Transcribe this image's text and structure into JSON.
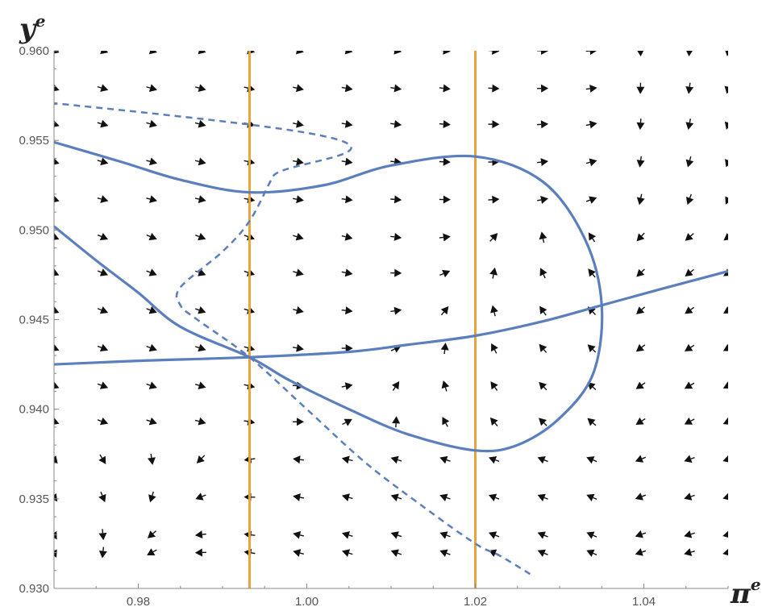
{
  "chart_data": {
    "type": "vector-field",
    "xlabel": "π",
    "xlabel_sup": "e",
    "ylabel": "y",
    "ylabel_sup": "e",
    "xlim": [
      0.97,
      1.05
    ],
    "ylim": [
      0.93,
      0.96
    ],
    "x_ticks": [
      0.98,
      1.0,
      1.02,
      1.04
    ],
    "x_tick_labels": [
      "0.98",
      "1.00",
      "1.02",
      "1.04"
    ],
    "y_ticks": [
      0.93,
      0.935,
      0.94,
      0.945,
      0.95,
      0.955,
      0.96
    ],
    "y_tick_labels": [
      "0.930",
      "0.935",
      "0.940",
      "0.945",
      "0.950",
      "0.955",
      "0.960"
    ],
    "grid": false,
    "colors": {
      "curve": "#5b7fbd",
      "vertical": "#e8a33d",
      "arrow": "#111111",
      "axis": "#888888"
    },
    "vertical_lines_x": [
      0.9932,
      1.02
    ],
    "series": [
      {
        "style": "solid",
        "points": [
          [
            0.97,
            0.9425
          ],
          [
            0.98,
            0.9427
          ],
          [
            0.9932,
            0.9429
          ],
          [
            1.005,
            0.9432
          ],
          [
            1.012,
            0.9436
          ],
          [
            1.02,
            0.9441
          ],
          [
            1.028,
            0.9449
          ],
          [
            1.035,
            0.9458
          ],
          [
            1.042,
            0.9467
          ],
          [
            1.05,
            0.9477
          ]
        ]
      },
      {
        "style": "solid",
        "points": [
          [
            0.97,
            0.9502
          ],
          [
            0.975,
            0.9483
          ],
          [
            0.98,
            0.9465
          ],
          [
            0.985,
            0.9446
          ],
          [
            0.9932,
            0.9429
          ],
          [
            0.998,
            0.9416
          ],
          [
            1.005,
            0.94
          ],
          [
            1.012,
            0.9386
          ],
          [
            1.02,
            0.9377
          ],
          [
            1.025,
            0.938
          ],
          [
            1.03,
            0.9395
          ],
          [
            1.034,
            0.942
          ],
          [
            1.035,
            0.9458
          ],
          [
            1.033,
            0.9495
          ],
          [
            1.028,
            0.9527
          ],
          [
            1.02,
            0.9541
          ],
          [
            1.01,
            0.9536
          ],
          [
            1.002,
            0.9525
          ],
          [
            0.9932,
            0.9521
          ],
          [
            0.985,
            0.9528
          ],
          [
            0.978,
            0.9538
          ],
          [
            0.97,
            0.9549
          ]
        ]
      },
      {
        "style": "dashed",
        "points": [
          [
            0.9043,
            0.96
          ],
          [
            0.999,
            0.9555
          ],
          [
            0.996,
            0.953
          ],
          [
            0.9932,
            0.9505
          ],
          [
            0.99,
            0.9488
          ],
          [
            0.985,
            0.9468
          ],
          [
            0.985,
            0.9458
          ],
          [
            0.987,
            0.945
          ],
          [
            0.9932,
            0.9429
          ],
          [
            1.0,
            0.94
          ],
          [
            1.007,
            0.937
          ],
          [
            1.014,
            0.9345
          ],
          [
            1.02,
            0.9325
          ],
          [
            1.023,
            0.9318
          ],
          [
            1.0265,
            0.9308
          ]
        ]
      }
    ],
    "vector_field": {
      "x_values": [
        0.97,
        0.9758,
        0.9816,
        0.9874,
        0.9932,
        0.999,
        1.0048,
        1.0106,
        1.0164,
        1.0222,
        1.028,
        1.0338,
        1.0396,
        1.0454,
        1.05
      ],
      "y_values": [
        0.96,
        0.9579,
        0.9559,
        0.9538,
        0.9517,
        0.9496,
        0.9476,
        0.9455,
        0.9434,
        0.9413,
        0.9393,
        0.9372,
        0.9351,
        0.933,
        0.932
      ]
    }
  }
}
